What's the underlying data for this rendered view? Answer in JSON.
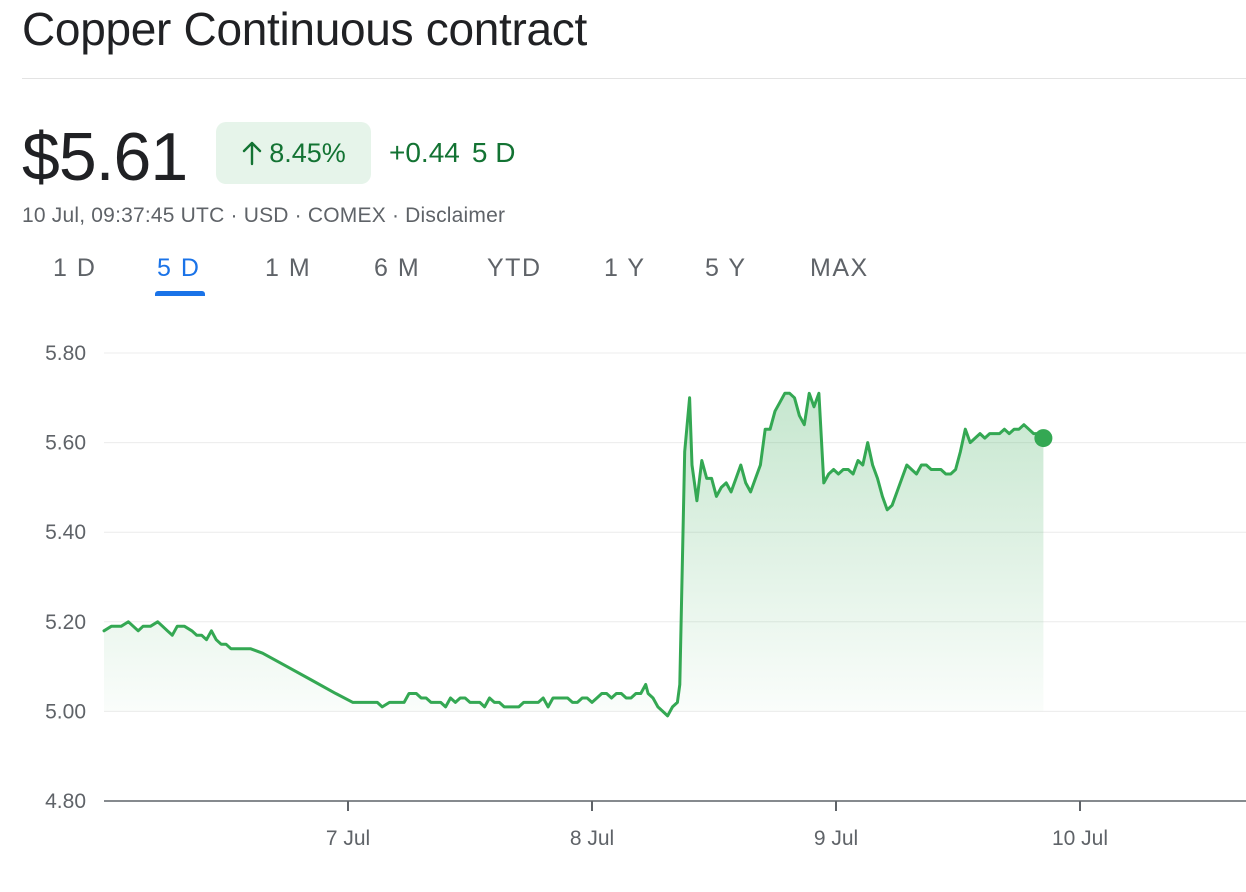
{
  "header": {
    "title": "Copper Continuous contract"
  },
  "quote": {
    "price": "$5.61",
    "percent_change": "8.45%",
    "abs_change": "+0.44",
    "period": "5 D",
    "meta": "10 Jul, 09:37:45 UTC · USD · COMEX · Disclaimer",
    "positive_color": "#137333",
    "badge_bg": "#e6f4ea"
  },
  "tabs": [
    {
      "label": "1 D",
      "active": false
    },
    {
      "label": "5 D",
      "active": true
    },
    {
      "label": "1 M",
      "active": false
    },
    {
      "label": "6 M",
      "active": false
    },
    {
      "label": "YTD",
      "active": false
    },
    {
      "label": "1 Y",
      "active": false
    },
    {
      "label": "5 Y",
      "active": false
    },
    {
      "label": "MAX",
      "active": false
    }
  ],
  "chart_data": {
    "type": "area",
    "title": "",
    "xlabel": "",
    "ylabel": "",
    "x_unit": "days (0 = 7 Jul 00:00)",
    "ylim": [
      4.8,
      5.8
    ],
    "xlim": [
      -1.0,
      3.6
    ],
    "y_ticks": [
      "5.80",
      "5.60",
      "5.40",
      "5.20",
      "5.00",
      "4.80"
    ],
    "x_ticks": [
      {
        "label": "7 Jul",
        "value": 0
      },
      {
        "label": "8 Jul",
        "value": 1
      },
      {
        "label": "9 Jul",
        "value": 2
      },
      {
        "label": "10 Jul",
        "value": 3
      }
    ],
    "grid": true,
    "line_color": "#34a853",
    "fill_color": "#34a853",
    "series": [
      {
        "values": [
          [
            -1.0,
            5.18
          ],
          [
            -0.97,
            5.19
          ],
          [
            -0.93,
            5.19
          ],
          [
            -0.9,
            5.2
          ],
          [
            -0.88,
            5.19
          ],
          [
            -0.86,
            5.18
          ],
          [
            -0.84,
            5.19
          ],
          [
            -0.81,
            5.19
          ],
          [
            -0.78,
            5.2
          ],
          [
            -0.76,
            5.19
          ],
          [
            -0.74,
            5.18
          ],
          [
            -0.72,
            5.17
          ],
          [
            -0.7,
            5.19
          ],
          [
            -0.67,
            5.19
          ],
          [
            -0.64,
            5.18
          ],
          [
            -0.62,
            5.17
          ],
          [
            -0.6,
            5.17
          ],
          [
            -0.58,
            5.16
          ],
          [
            -0.56,
            5.18
          ],
          [
            -0.54,
            5.16
          ],
          [
            -0.52,
            5.15
          ],
          [
            -0.5,
            5.15
          ],
          [
            -0.48,
            5.14
          ],
          [
            -0.46,
            5.14
          ],
          [
            -0.44,
            5.14
          ],
          [
            -0.4,
            5.14
          ],
          [
            -0.35,
            5.13
          ],
          [
            -0.25,
            5.1
          ],
          [
            -0.15,
            5.07
          ],
          [
            -0.05,
            5.04
          ],
          [
            0.02,
            5.02
          ],
          [
            0.06,
            5.02
          ],
          [
            0.09,
            5.02
          ],
          [
            0.12,
            5.02
          ],
          [
            0.14,
            5.01
          ],
          [
            0.17,
            5.02
          ],
          [
            0.2,
            5.02
          ],
          [
            0.23,
            5.02
          ],
          [
            0.25,
            5.04
          ],
          [
            0.28,
            5.04
          ],
          [
            0.3,
            5.03
          ],
          [
            0.32,
            5.03
          ],
          [
            0.34,
            5.02
          ],
          [
            0.36,
            5.02
          ],
          [
            0.38,
            5.02
          ],
          [
            0.4,
            5.01
          ],
          [
            0.42,
            5.03
          ],
          [
            0.44,
            5.02
          ],
          [
            0.46,
            5.03
          ],
          [
            0.48,
            5.03
          ],
          [
            0.5,
            5.02
          ],
          [
            0.52,
            5.02
          ],
          [
            0.54,
            5.02
          ],
          [
            0.56,
            5.01
          ],
          [
            0.58,
            5.03
          ],
          [
            0.6,
            5.02
          ],
          [
            0.62,
            5.02
          ],
          [
            0.64,
            5.01
          ],
          [
            0.66,
            5.01
          ],
          [
            0.68,
            5.01
          ],
          [
            0.7,
            5.01
          ],
          [
            0.72,
            5.02
          ],
          [
            0.74,
            5.02
          ],
          [
            0.76,
            5.02
          ],
          [
            0.78,
            5.02
          ],
          [
            0.8,
            5.03
          ],
          [
            0.82,
            5.01
          ],
          [
            0.84,
            5.03
          ],
          [
            0.86,
            5.03
          ],
          [
            0.88,
            5.03
          ],
          [
            0.9,
            5.03
          ],
          [
            0.92,
            5.02
          ],
          [
            0.94,
            5.02
          ],
          [
            0.96,
            5.03
          ],
          [
            0.98,
            5.03
          ],
          [
            1.0,
            5.02
          ],
          [
            1.02,
            5.03
          ],
          [
            1.04,
            5.04
          ],
          [
            1.06,
            5.04
          ],
          [
            1.08,
            5.03
          ],
          [
            1.1,
            5.04
          ],
          [
            1.12,
            5.04
          ],
          [
            1.14,
            5.03
          ],
          [
            1.16,
            5.03
          ],
          [
            1.18,
            5.04
          ],
          [
            1.2,
            5.04
          ],
          [
            1.22,
            5.06
          ],
          [
            1.23,
            5.04
          ],
          [
            1.25,
            5.03
          ],
          [
            1.27,
            5.01
          ],
          [
            1.29,
            5.0
          ],
          [
            1.31,
            4.99
          ],
          [
            1.33,
            5.01
          ],
          [
            1.35,
            5.02
          ],
          [
            1.36,
            5.06
          ],
          [
            1.38,
            5.58
          ],
          [
            1.4,
            5.7
          ],
          [
            1.41,
            5.55
          ],
          [
            1.43,
            5.47
          ],
          [
            1.45,
            5.56
          ],
          [
            1.47,
            5.52
          ],
          [
            1.49,
            5.52
          ],
          [
            1.51,
            5.48
          ],
          [
            1.53,
            5.5
          ],
          [
            1.55,
            5.51
          ],
          [
            1.57,
            5.49
          ],
          [
            1.59,
            5.52
          ],
          [
            1.61,
            5.55
          ],
          [
            1.63,
            5.51
          ],
          [
            1.65,
            5.49
          ],
          [
            1.67,
            5.52
          ],
          [
            1.69,
            5.55
          ],
          [
            1.71,
            5.63
          ],
          [
            1.73,
            5.63
          ],
          [
            1.75,
            5.67
          ],
          [
            1.77,
            5.69
          ],
          [
            1.79,
            5.71
          ],
          [
            1.81,
            5.71
          ],
          [
            1.83,
            5.7
          ],
          [
            1.85,
            5.66
          ],
          [
            1.87,
            5.64
          ],
          [
            1.89,
            5.71
          ],
          [
            1.91,
            5.68
          ],
          [
            1.93,
            5.71
          ],
          [
            1.95,
            5.51
          ],
          [
            1.97,
            5.53
          ],
          [
            1.99,
            5.54
          ],
          [
            2.01,
            5.53
          ],
          [
            2.03,
            5.54
          ],
          [
            2.05,
            5.54
          ],
          [
            2.07,
            5.53
          ],
          [
            2.09,
            5.56
          ],
          [
            2.11,
            5.55
          ],
          [
            2.13,
            5.6
          ],
          [
            2.15,
            5.55
          ],
          [
            2.17,
            5.52
          ],
          [
            2.19,
            5.48
          ],
          [
            2.21,
            5.45
          ],
          [
            2.23,
            5.46
          ],
          [
            2.25,
            5.49
          ],
          [
            2.27,
            5.52
          ],
          [
            2.29,
            5.55
          ],
          [
            2.31,
            5.54
          ],
          [
            2.33,
            5.53
          ],
          [
            2.35,
            5.55
          ],
          [
            2.37,
            5.55
          ],
          [
            2.39,
            5.54
          ],
          [
            2.41,
            5.54
          ],
          [
            2.43,
            5.54
          ],
          [
            2.45,
            5.53
          ],
          [
            2.47,
            5.53
          ],
          [
            2.49,
            5.54
          ],
          [
            2.51,
            5.58
          ],
          [
            2.53,
            5.63
          ],
          [
            2.55,
            5.6
          ],
          [
            2.57,
            5.61
          ],
          [
            2.59,
            5.62
          ],
          [
            2.61,
            5.61
          ],
          [
            2.63,
            5.62
          ],
          [
            2.65,
            5.62
          ],
          [
            2.67,
            5.62
          ],
          [
            2.69,
            5.63
          ],
          [
            2.71,
            5.62
          ],
          [
            2.73,
            5.63
          ],
          [
            2.75,
            5.63
          ],
          [
            2.77,
            5.64
          ],
          [
            2.79,
            5.63
          ],
          [
            2.81,
            5.62
          ],
          [
            2.83,
            5.62
          ],
          [
            2.85,
            5.61
          ]
        ]
      }
    ]
  }
}
